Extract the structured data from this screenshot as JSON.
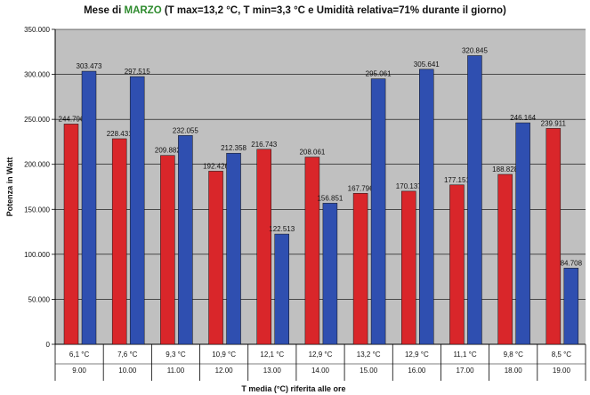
{
  "title": {
    "pre": "Mese  di ",
    "highlight": "MARZO",
    "post": " (T max=13,2 °C, T min=3,3 °C e Umidità relativa=71% durante il giorno)"
  },
  "colors": {
    "plot_bg": "#c0c0c0",
    "series1": "#d9262a",
    "series2": "#2f4fb0",
    "highlight": "#2e8b2e"
  },
  "chart_data": {
    "type": "bar",
    "categories": [
      "9.00",
      "10.00",
      "11.00",
      "12.00",
      "13.00",
      "14.00",
      "15.00",
      "16.00",
      "17.00",
      "18.00",
      "19.00"
    ],
    "categories_temp": [
      "6,1 °C",
      "7,6 °C",
      "9,3 °C",
      "10,9 °C",
      "12,1 °C",
      "12,9 °C",
      "13,2 °C",
      "12,9 °C",
      "11,1 °C",
      "9,8 °C",
      "8,5 °C"
    ],
    "series": [
      {
        "values": [
          244796,
          228431,
          209882,
          192426,
          216743,
          208061,
          167796,
          170137,
          177151,
          188828,
          239911
        ],
        "labels": [
          "244.796",
          "228.431",
          "209.882",
          "192.426",
          "216.743",
          "208.061",
          "167.796",
          "170.137",
          "177.151",
          "188.828",
          "239.911"
        ]
      },
      {
        "values": [
          303473,
          297515,
          232055,
          212358,
          122513,
          156851,
          295061,
          305641,
          320845,
          246164,
          84708
        ],
        "labels": [
          "303.473",
          "297.515",
          "232.055",
          "212.358",
          "122.513",
          "156.851",
          "295.061",
          "305.641",
          "320.845",
          "246.164",
          "84.708"
        ]
      }
    ],
    "ylim": [
      0,
      350000
    ],
    "yticks": [
      0,
      50000,
      100000,
      150000,
      200000,
      250000,
      300000,
      350000
    ],
    "ytick_labels": [
      "0",
      "50.000",
      "100.000",
      "150.000",
      "200.000",
      "250.000",
      "300.000",
      "350.000"
    ],
    "ylabel": "Potenza in Watt",
    "xlabel": "T media (°C) riferita alle ore",
    "grid": true
  }
}
